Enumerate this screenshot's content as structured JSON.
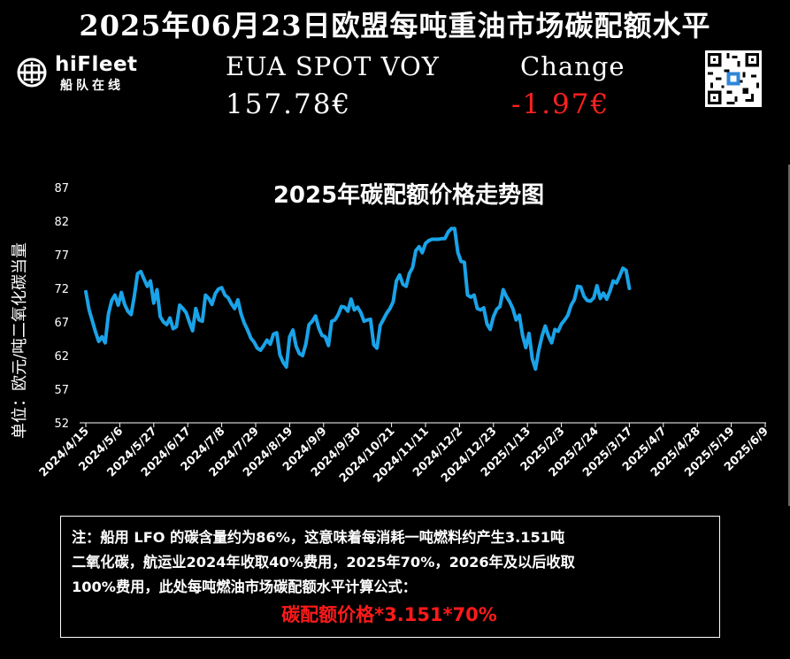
{
  "header": {
    "title": "2025年06月23日欧盟每吨重油市场碳配额水平",
    "logo_name": "hiFleet",
    "logo_sub": "船队在线",
    "eua_label": "EUA SPOT VOY",
    "eua_price": "157.78€",
    "change_label": "Change",
    "change_value": "-1.97€"
  },
  "colors": {
    "line": "#1aa3e8",
    "change": "#ff2020",
    "formula": "#ff1a1a",
    "background": "#000000"
  },
  "icons": {
    "logo": "hifleet-globe-icon",
    "qr": "qr-code-icon"
  },
  "chart_data": {
    "type": "line",
    "title": "2025年碳配额价格走势图",
    "ylabel": "单位：欧元/吨二氧化碳当量",
    "xlabel": "",
    "ylim": [
      52,
      87
    ],
    "yticks": [
      87,
      82,
      77,
      72,
      67,
      62,
      57,
      52
    ],
    "grid": false,
    "legend": "none",
    "x_ticks": [
      "2024/4/15",
      "2024/5/6",
      "2024/5/27",
      "2024/6/17",
      "2024/7/8",
      "2024/7/29",
      "2024/8/19",
      "2024/9/9",
      "2024/9/30",
      "2024/10/21",
      "2024/11/11",
      "2024/12/2",
      "2024/12/23",
      "2025/1/13",
      "2025/2/3",
      "2025/2/24",
      "2025/3/17",
      "2025/4/7",
      "2025/4/28",
      "2025/5/19",
      "2025/6/9"
    ],
    "series": [
      {
        "x_start": "2024/4/15",
        "step_days": 2,
        "values": [
          71.5,
          68.8,
          67.2,
          65.5,
          64.1,
          64.8,
          63.9,
          68.2,
          70.2,
          71.0,
          69.5,
          71.4,
          69.6,
          68.6,
          68.1,
          70.9,
          74.2,
          74.5,
          73.4,
          72.3,
          73.1,
          69.8,
          71.8,
          67.8,
          67.0,
          66.6,
          67.6,
          66.0,
          66.3,
          69.5,
          69.0,
          68.4,
          67.0,
          65.7,
          69.0,
          67.3,
          67.1,
          71.0,
          70.5,
          69.6,
          71.2,
          71.9,
          72.1,
          71.0,
          70.6,
          69.7,
          69.0,
          70.3,
          68.2,
          66.8,
          65.8,
          64.6,
          64.0,
          63.1,
          62.8,
          63.5,
          64.3,
          63.7,
          65.2,
          65.4,
          62.1,
          61.0,
          60.3,
          64.8,
          65.8,
          63.4,
          62.3,
          62.0,
          63.7,
          66.6,
          67.1,
          67.9,
          66.1,
          65.0,
          64.8,
          63.5,
          67.1,
          67.3,
          68.1,
          69.3,
          69.2,
          68.6,
          70.4,
          68.8,
          69.2,
          68.4,
          67.1,
          67.3,
          67.4,
          63.6,
          63.1,
          66.5,
          67.4,
          68.3,
          69.0,
          70.0,
          73.1,
          74.0,
          72.6,
          72.3,
          74.2,
          75.1,
          77.6,
          78.2,
          77.3,
          78.7,
          79.1,
          79.3,
          79.3,
          79.3,
          79.4,
          79.4,
          80.4,
          80.9,
          80.9,
          77.3,
          76.0,
          75.9,
          71.0,
          70.7,
          71.0,
          69.0,
          68.8,
          69.1,
          66.7,
          65.9,
          67.8,
          68.9,
          69.3,
          71.8,
          70.8,
          70.0,
          69.0,
          67.3,
          68.0,
          65.0,
          63.2,
          65.3,
          61.5,
          60.0,
          62.8,
          64.9,
          66.4,
          64.9,
          63.9,
          65.9,
          65.6,
          66.7,
          67.3,
          68.0,
          69.5,
          70.3,
          72.3,
          72.2,
          70.8,
          70.2,
          70.1,
          70.6,
          72.4,
          70.5,
          71.3,
          70.4,
          71.6,
          73.1,
          72.8,
          73.8,
          75.0,
          74.7,
          72.0
        ]
      }
    ]
  },
  "note": {
    "lines": [
      "注：船用 LFO 的碳含量约为86%，这意味着每消耗一吨燃料约产生3.151吨",
      "二氧化碳，航运业2024年收取40%费用，2025年70%，2026年及以后收取",
      "100%费用，此处每吨燃油市场碳配额水平计算公式："
    ],
    "formula": "碳配额价格*3.151*70%"
  }
}
